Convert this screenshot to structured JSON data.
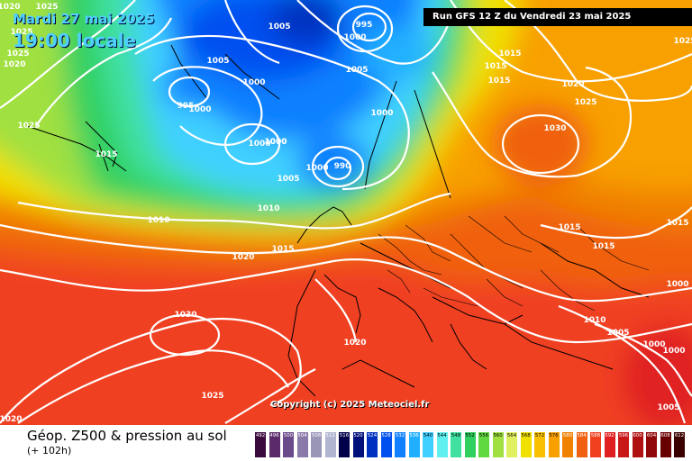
{
  "header": {
    "date": "Mardi 27 mai 2025",
    "time": "19:00 locale",
    "run": "Run GFS 12 Z du Vendredi 23 mai 2025"
  },
  "copyright": "Copyright (c) 2025 Meteociel.fr",
  "footer": {
    "title": "Géop. Z500 & pression au sol",
    "subtitle": "(+ 102h)"
  },
  "scale": {
    "values": [
      "492",
      "496",
      "500",
      "504",
      "508",
      "512",
      "516",
      "520",
      "524",
      "528",
      "532",
      "536",
      "540",
      "544",
      "548",
      "552",
      "556",
      "560",
      "564",
      "568",
      "572",
      "576",
      "580",
      "584",
      "588",
      "592",
      "596",
      "600",
      "604",
      "608",
      "612"
    ],
    "colors": [
      "#3a0a3c",
      "#5a2a6a",
      "#6a4a8a",
      "#8a7aaa",
      "#9a96b8",
      "#b0b6d0",
      "#00004a",
      "#00107a",
      "#0030c0",
      "#0050f0",
      "#1080ff",
      "#20b0ff",
      "#40d0ff",
      "#60f0f0",
      "#40e0a0",
      "#30d060",
      "#60d840",
      "#a0e040",
      "#e0f060",
      "#f0e000",
      "#f8c000",
      "#f8a000",
      "#f08000",
      "#f06010",
      "#f04020",
      "#e02020",
      "#c81818",
      "#b01010",
      "#900808",
      "#680000",
      "#3a0000"
    ]
  },
  "isobar_labels": [
    {
      "text": "1020"
    },
    {
      "text": "1025"
    },
    {
      "text": "1025"
    },
    {
      "text": "1025"
    },
    {
      "text": "1020"
    },
    {
      "text": "1025"
    },
    {
      "text": "1005"
    },
    {
      "text": "995"
    },
    {
      "text": "1000"
    },
    {
      "text": "1005"
    },
    {
      "text": "1000"
    },
    {
      "text": "995"
    },
    {
      "text": "1000"
    },
    {
      "text": "1005"
    },
    {
      "text": "1000"
    },
    {
      "text": "1000"
    },
    {
      "text": "1025"
    },
    {
      "text": "1015"
    },
    {
      "text": "1015"
    },
    {
      "text": "1015"
    },
    {
      "text": "1015"
    },
    {
      "text": "1020"
    },
    {
      "text": "1025"
    },
    {
      "text": "1030"
    },
    {
      "text": "1000"
    },
    {
      "text": "1000"
    },
    {
      "text": "1000"
    },
    {
      "text": "990"
    },
    {
      "text": "1005"
    },
    {
      "text": "1010"
    },
    {
      "text": "1010"
    },
    {
      "text": "1015"
    },
    {
      "text": "1020"
    },
    {
      "text": "1015"
    },
    {
      "text": "1015"
    },
    {
      "text": "1015"
    },
    {
      "text": "1030"
    },
    {
      "text": "1020"
    },
    {
      "text": "1010"
    },
    {
      "text": "1005"
    },
    {
      "text": "1000"
    },
    {
      "text": "1000"
    },
    {
      "text": "1025"
    },
    {
      "text": "1005"
    },
    {
      "text": "1000"
    },
    {
      "text": "1020"
    }
  ]
}
